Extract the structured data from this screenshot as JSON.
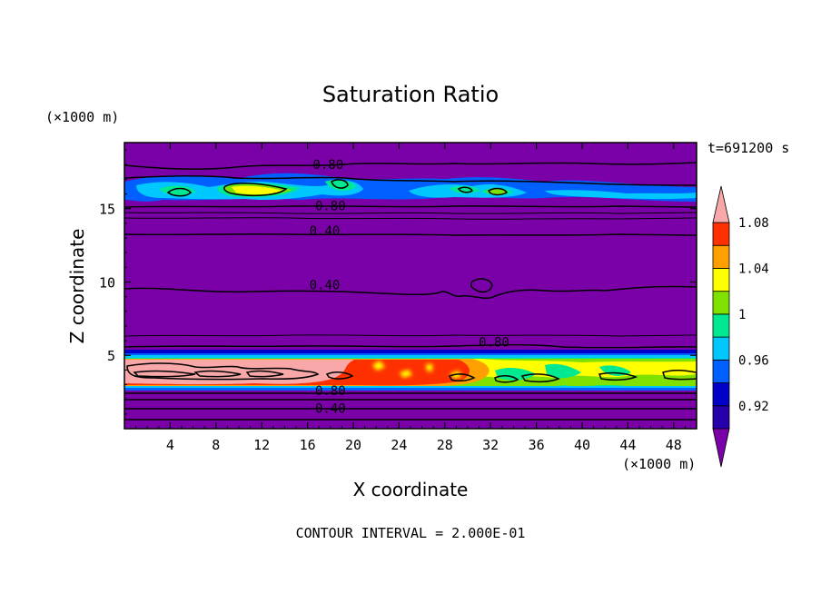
{
  "chart_data": {
    "type": "heatmap",
    "title": "Saturation Ratio",
    "xlabel": "X coordinate",
    "ylabel": "Z coordinate",
    "x_unit": "(×1000 m)",
    "y_unit": "(×1000 m)",
    "time_label": "t=691200 s",
    "footer": "CONTOUR INTERVAL = 2.000E-01",
    "xlim": [
      0,
      50
    ],
    "ylim": [
      0,
      19.5
    ],
    "x_ticks": [
      4,
      8,
      12,
      16,
      20,
      24,
      28,
      32,
      36,
      40,
      44,
      48
    ],
    "y_ticks": [
      5,
      10,
      15
    ],
    "colorbar": {
      "levels": [
        0.92,
        0.94,
        0.96,
        0.98,
        1.0,
        1.02,
        1.04,
        1.06,
        1.08,
        1.1
      ],
      "tick_labels": [
        "0.92",
        "0.96",
        "1",
        "1.04",
        "1.08"
      ],
      "tick_values": [
        0.92,
        0.96,
        1.0,
        1.04,
        1.08
      ],
      "colors": [
        "#7a00a8",
        "#2600a8",
        "#0000c8",
        "#0060ff",
        "#00c8ff",
        "#00e890",
        "#80e000",
        "#ffff00",
        "#ffa000",
        "#ff3000",
        "#f8a8a8"
      ]
    },
    "contour_labels": [
      {
        "text": "0.80",
        "x": 17.8,
        "z": 18.0
      },
      {
        "text": "0.80",
        "x": 18.0,
        "z": 15.2
      },
      {
        "text": "0.40",
        "x": 17.5,
        "z": 13.5
      },
      {
        "text": "0.40",
        "x": 17.5,
        "z": 9.8
      },
      {
        "text": "0.80",
        "x": 32.3,
        "z": 5.9
      },
      {
        "text": "0.80",
        "x": 18.0,
        "z": 2.6
      },
      {
        "text": "0.40",
        "x": 18.0,
        "z": 1.4
      }
    ],
    "moist_layers": [
      {
        "name": "upper cloud layer",
        "z_range": [
          15.9,
          17.4
        ],
        "peak_value": 1.04
      },
      {
        "name": "lower cloud layer",
        "z_range": [
          2.9,
          5.3
        ],
        "peak_value": 1.1
      }
    ]
  }
}
